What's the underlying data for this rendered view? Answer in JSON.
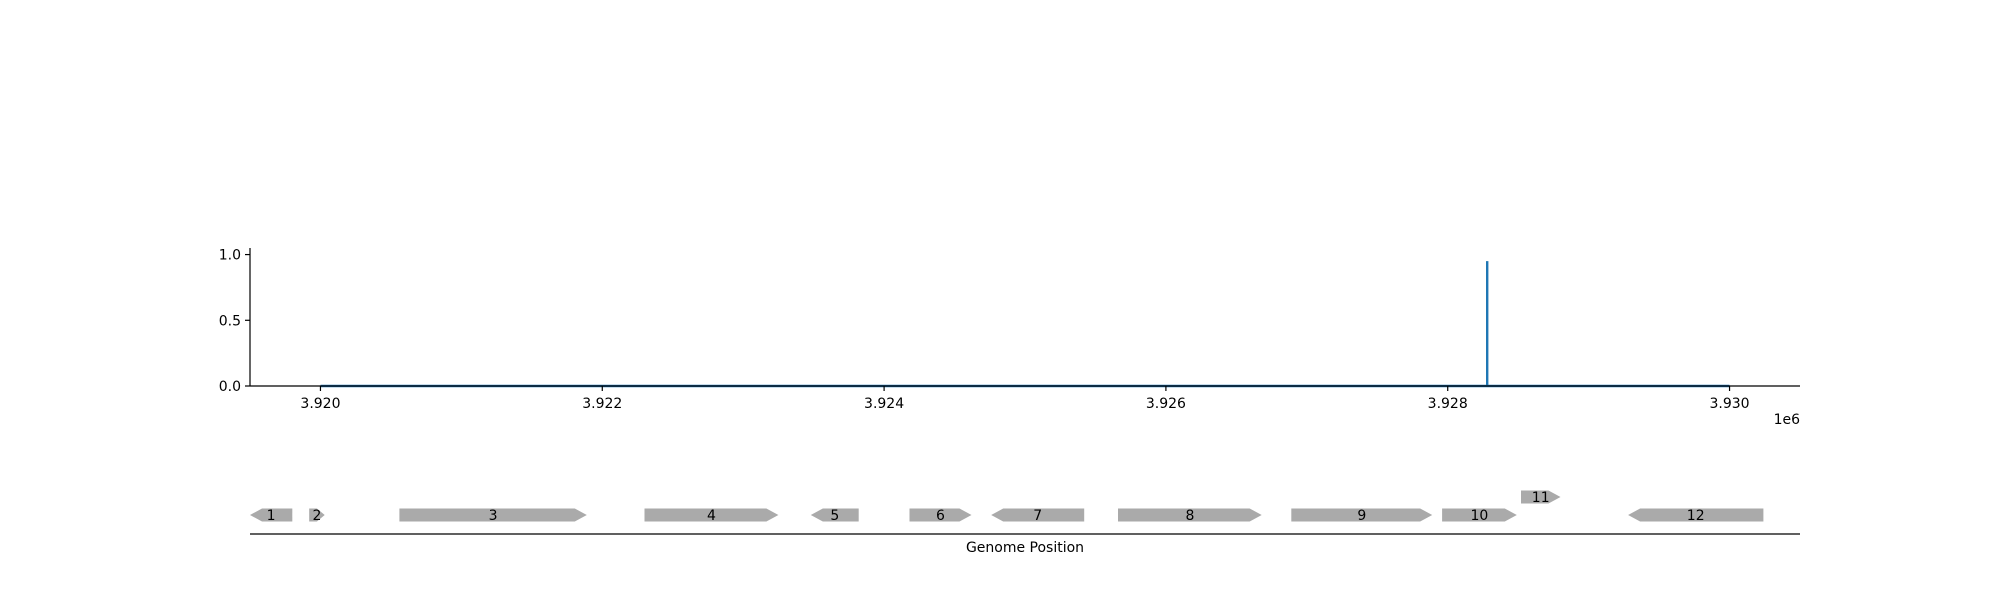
{
  "chart_data": [
    {
      "type": "line",
      "x": [
        3920000,
        3928280,
        3928280,
        3928280,
        3930000
      ],
      "y": [
        0,
        0,
        0.95,
        0,
        0
      ],
      "xlim": [
        3919500,
        3930500
      ],
      "ylim": [
        0,
        1.05
      ],
      "xticks": [
        "3.920",
        "3.922",
        "3.924",
        "3.926",
        "3.928",
        "3.930"
      ],
      "xtick_values": [
        3920000,
        3922000,
        3924000,
        3926000,
        3928000,
        3930000
      ],
      "yticks": [
        "0.0",
        "0.5",
        "1.0"
      ],
      "ytick_values": [
        0,
        0.5,
        1.0
      ],
      "offset_label": "1e6",
      "line_color": "#1f77b4",
      "grid": false
    },
    {
      "type": "gene_track",
      "xlabel": "Genome Position",
      "xlim": [
        3919500,
        3930500
      ],
      "gene_color": "#aaaaaa",
      "genes": [
        {
          "label": "1",
          "start": 3919500,
          "end": 3919800,
          "strand": "-",
          "row": 0
        },
        {
          "label": "2",
          "start": 3919920,
          "end": 3920030,
          "strand": "+",
          "row": 0
        },
        {
          "label": "3",
          "start": 3920560,
          "end": 3921890,
          "strand": "+",
          "row": 0
        },
        {
          "label": "4",
          "start": 3922300,
          "end": 3923250,
          "strand": "+",
          "row": 0
        },
        {
          "label": "5",
          "start": 3923480,
          "end": 3923820,
          "strand": "-",
          "row": 0
        },
        {
          "label": "6",
          "start": 3924180,
          "end": 3924620,
          "strand": "+",
          "row": 0
        },
        {
          "label": "7",
          "start": 3924760,
          "end": 3925420,
          "strand": "-",
          "row": 0
        },
        {
          "label": "8",
          "start": 3925660,
          "end": 3926680,
          "strand": "+",
          "row": 0
        },
        {
          "label": "9",
          "start": 3926890,
          "end": 3927890,
          "strand": "+",
          "row": 0
        },
        {
          "label": "10",
          "start": 3927960,
          "end": 3928490,
          "strand": "+",
          "row": 0
        },
        {
          "label": "11",
          "start": 3928520,
          "end": 3928800,
          "strand": "+",
          "row": 1
        },
        {
          "label": "12",
          "start": 3929280,
          "end": 3930240,
          "strand": "-",
          "row": 0
        }
      ]
    }
  ]
}
